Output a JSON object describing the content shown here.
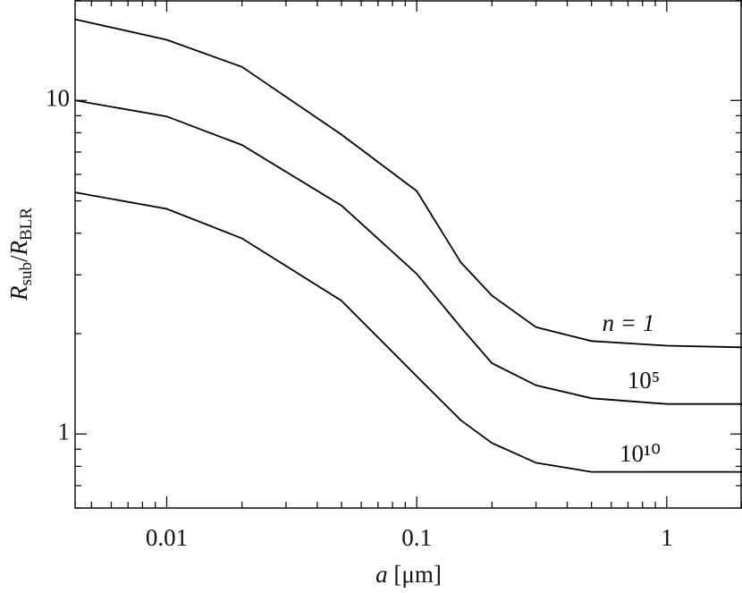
{
  "chart_data": {
    "type": "line",
    "x_label": [
      "a",
      " [μm]"
    ],
    "y_label": [
      "R",
      "sub",
      "/",
      "R",
      "BLR"
    ],
    "x": [
      0.0043,
      0.01,
      0.02,
      0.05,
      0.1,
      0.15,
      0.2,
      0.3,
      0.5,
      1,
      2
    ],
    "series": [
      {
        "name": "n = 1",
        "color": "#000000",
        "values": [
          17.5,
          15.2,
          12.6,
          7.9,
          5.35,
          3.27,
          2.6,
          2.09,
          1.9,
          1.84,
          1.82
        ]
      },
      {
        "name": "10⁵",
        "color": "#000000",
        "values": [
          10.0,
          8.95,
          7.35,
          4.84,
          3.02,
          2.09,
          1.63,
          1.4,
          1.28,
          1.23,
          1.23
        ]
      },
      {
        "name": "10¹⁰",
        "color": "#000000",
        "values": [
          5.3,
          4.73,
          3.86,
          2.51,
          1.49,
          1.1,
          0.94,
          0.82,
          0.77,
          0.77,
          0.77
        ]
      }
    ],
    "xlim": [
      0.0043,
      2
    ],
    "ylim": [
      0.6,
      20
    ],
    "xscale": "log",
    "yscale": "log",
    "xticks": [
      0.01,
      0.1,
      1
    ],
    "yticks": [
      1,
      10
    ],
    "xminor_ticks": [
      0.005,
      0.006,
      0.007,
      0.008,
      0.009,
      0.02,
      0.03,
      0.04,
      0.05,
      0.06,
      0.07,
      0.08,
      0.09,
      0.2,
      0.3,
      0.4,
      0.5,
      0.6,
      0.7,
      0.8,
      0.9,
      2
    ],
    "yminor_ticks": [
      0.6,
      0.7,
      0.8,
      0.9,
      2,
      3,
      4,
      5,
      6,
      7,
      8,
      9,
      20
    ]
  }
}
